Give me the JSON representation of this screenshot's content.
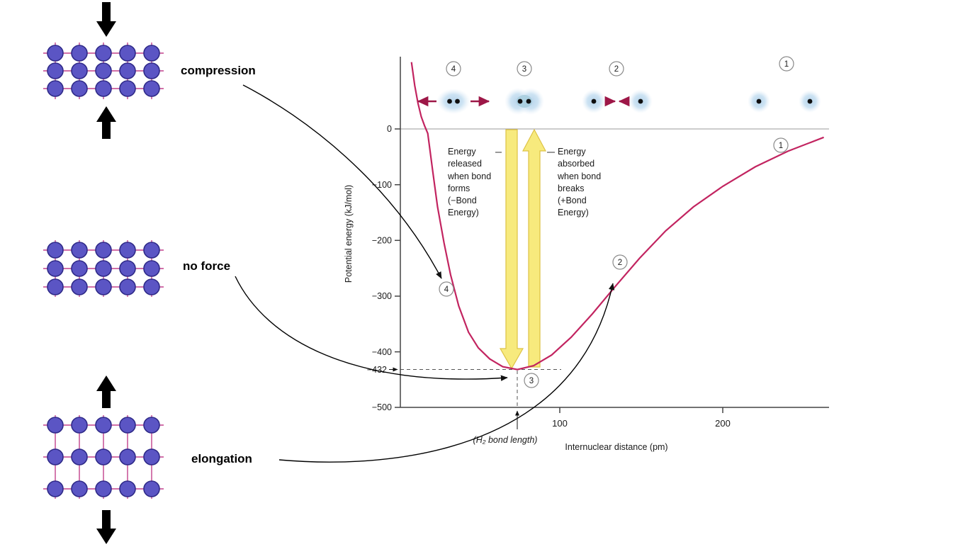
{
  "figure": {
    "labels": {
      "compression": "compression",
      "no_force": "no force",
      "elongation": "elongation"
    }
  },
  "chart": {
    "y_axis_label": "Potential energy (kJ/mol)",
    "x_axis_label": "Internuclear distance (pm)",
    "y_ticks": [
      "0",
      "−100",
      "−200",
      "−300",
      "−400",
      "−500"
    ],
    "y_min_label": "−432",
    "x_ticks": [
      "100",
      "200"
    ],
    "bond_length_label": "(H₂ bond length)",
    "annotations": {
      "released": "Energy\nreleased\nwhen bond\nforms\n(−Bond\nEnergy)",
      "absorbed": "Energy\nabsorbed\nwhen bond\nbreaks\n(+Bond\nEnergy)"
    },
    "markers": [
      "1",
      "2",
      "3",
      "4"
    ]
  },
  "chart_data": {
    "type": "line",
    "xlabel": "Internuclear distance (pm)",
    "ylabel": "Potential energy (kJ/mol)",
    "xlim": [
      0,
      265
    ],
    "ylim": [
      -500,
      160
    ],
    "x_ticks": [
      100,
      200
    ],
    "y_ticks": [
      0,
      -100,
      -200,
      -300,
      -400,
      -500
    ],
    "key_points": {
      "minimum": {
        "x_pm": 74,
        "y_kj_mol": -432,
        "label": "H2 bond length"
      }
    },
    "series": [
      {
        "name": "H2 potential energy curve",
        "x": [
          9,
          11,
          13,
          15,
          17,
          19,
          22,
          25,
          29,
          33,
          38,
          44,
          50,
          57,
          65,
          74,
          84,
          95,
          107,
          120,
          134,
          149,
          165,
          182,
          200,
          220,
          240,
          262
        ],
        "y": [
          120,
          78,
          46,
          22,
          6,
          -8,
          -75,
          -140,
          -205,
          -262,
          -318,
          -365,
          -393,
          -413,
          -427,
          -432,
          -425,
          -406,
          -374,
          -332,
          -283,
          -232,
          -183,
          -140,
          -103,
          -68,
          -40,
          -15
        ]
      }
    ],
    "point_markers": [
      {
        "label": "1",
        "x": 236,
        "y": -29
      },
      {
        "label": "2",
        "x": 137,
        "y": -239
      },
      {
        "label": "3",
        "x": 83,
        "y": -451
      },
      {
        "label": "4",
        "x": 30,
        "y": -287
      }
    ],
    "legend_position": "none",
    "grid": false
  }
}
